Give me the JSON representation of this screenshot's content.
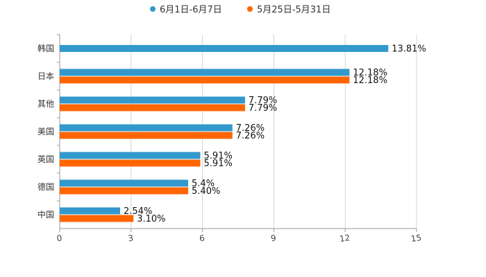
{
  "chart_data": {
    "type": "bar",
    "orientation": "horizontal",
    "title": "",
    "xlabel": "",
    "ylabel": "",
    "xlim": [
      0,
      15
    ],
    "ticks": [
      0,
      3,
      6,
      9,
      12,
      15
    ],
    "tick_labels": [
      "0",
      "3",
      "6",
      "9",
      "12",
      "15"
    ],
    "grid": true,
    "legend_position": "top-center",
    "categories": [
      "韩国",
      "日本",
      "其他",
      "美国",
      "英国",
      "德国",
      "中国"
    ],
    "series": [
      {
        "name": "6月1日-6月7日",
        "color": "#3399CC",
        "values": [
          13.81,
          12.18,
          7.79,
          7.26,
          5.91,
          5.4,
          2.54
        ],
        "labels": [
          "13.81%",
          "12.18%",
          "7.79%",
          "7.26%",
          "5.91%",
          "5.4%",
          "2.54%"
        ]
      },
      {
        "name": "5月25日-5月31日",
        "color": "#FF6600",
        "values": [
          null,
          12.18,
          7.79,
          7.26,
          5.91,
          5.4,
          3.1
        ],
        "labels": [
          null,
          "12.18%",
          "7.79%",
          "7.26%",
          "5.91%",
          "5.40%",
          "3.10%"
        ]
      }
    ]
  }
}
